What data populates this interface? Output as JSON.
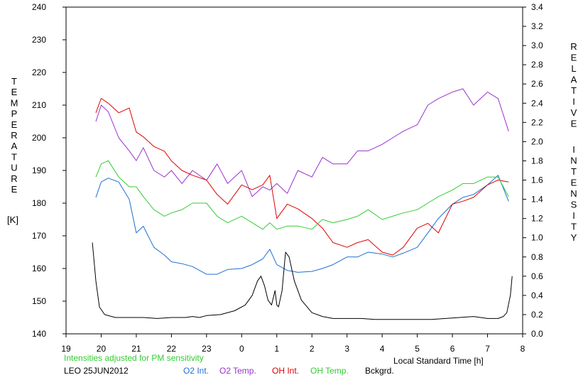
{
  "chart_data": {
    "type": "line",
    "left_axis": {
      "label_letters": [
        "T",
        "E",
        "M",
        "P",
        "E",
        "R",
        "A",
        "T",
        "U",
        "R",
        "E"
      ],
      "unit": "[K]",
      "ylim": [
        140,
        240
      ],
      "ticks": [
        "140",
        "150",
        "160",
        "170",
        "180",
        "190",
        "200",
        "210",
        "220",
        "230",
        "240"
      ]
    },
    "right_axis": {
      "label_word1": [
        "R",
        "E",
        "L",
        "A",
        "T",
        "I",
        "V",
        "E"
      ],
      "label_word2": [
        "I",
        "N",
        "T",
        "E",
        "N",
        "S",
        "I",
        "T",
        "Y"
      ],
      "ylim": [
        0,
        3.4
      ],
      "ticks": [
        "0.0",
        "0.2",
        "0.4",
        "0.6",
        "0.8",
        "1.0",
        "1.2",
        "1.4",
        "1.6",
        "1.8",
        "2.0",
        "2.2",
        "2.4",
        "2.6",
        "2.8",
        "3.0",
        "3.2",
        "3.4"
      ]
    },
    "x_axis": {
      "label": "Local Standard Time [h]",
      "xlim": [
        19,
        32
      ],
      "tick_labels": [
        "19",
        "20",
        "21",
        "22",
        "23",
        "0",
        "1",
        "2",
        "3",
        "4",
        "5",
        "6",
        "7",
        "8"
      ]
    },
    "note": "Intensities adjusted for PM sensitivity",
    "station": "LEO 25JUN2012",
    "series": [
      {
        "name": "O2 Int.",
        "axis": "right",
        "color": "#1e6fd6",
        "x": [
          19.85,
          20.0,
          20.2,
          20.5,
          20.8,
          21.0,
          21.2,
          21.5,
          21.8,
          22.0,
          22.3,
          22.6,
          23.0,
          23.3,
          23.6,
          24.0,
          24.3,
          24.6,
          24.8,
          25.0,
          25.3,
          25.6,
          26.0,
          26.3,
          26.6,
          27.0,
          27.3,
          27.6,
          28.0,
          28.3,
          28.6,
          29.0,
          29.3,
          29.6,
          30.0,
          30.3,
          30.6,
          31.0,
          31.3,
          31.6
        ],
        "values": [
          1.42,
          1.58,
          1.62,
          1.58,
          1.4,
          1.05,
          1.12,
          0.9,
          0.82,
          0.75,
          0.73,
          0.7,
          0.62,
          0.62,
          0.67,
          0.68,
          0.72,
          0.78,
          0.88,
          0.72,
          0.66,
          0.64,
          0.65,
          0.68,
          0.72,
          0.8,
          0.8,
          0.85,
          0.83,
          0.8,
          0.84,
          0.9,
          1.05,
          1.2,
          1.35,
          1.42,
          1.45,
          1.55,
          1.65,
          1.38
        ]
      },
      {
        "name": "O2 Temp.",
        "axis": "left",
        "color": "#9933cc",
        "x": [
          19.85,
          20.0,
          20.2,
          20.5,
          20.8,
          21.0,
          21.2,
          21.5,
          21.8,
          22.0,
          22.3,
          22.6,
          23.0,
          23.3,
          23.6,
          24.0,
          24.3,
          24.6,
          24.8,
          25.0,
          25.3,
          25.6,
          26.0,
          26.3,
          26.6,
          27.0,
          27.3,
          27.6,
          28.0,
          28.3,
          28.6,
          29.0,
          29.3,
          29.6,
          30.0,
          30.3,
          30.6,
          31.0,
          31.3,
          31.6
        ],
        "values": [
          205,
          210,
          208,
          200,
          196,
          193,
          197,
          190,
          188,
          190,
          186,
          190,
          187,
          192,
          186,
          190,
          182,
          185,
          184,
          186,
          183,
          190,
          188,
          194,
          192,
          192,
          196,
          196,
          198,
          200,
          202,
          204,
          210,
          212,
          214,
          215,
          210,
          214,
          212,
          202
        ]
      },
      {
        "name": "OH Int.",
        "axis": "right",
        "color": "#e00000",
        "x": [
          19.85,
          20.0,
          20.2,
          20.5,
          20.8,
          21.0,
          21.2,
          21.5,
          21.8,
          22.0,
          22.3,
          22.6,
          23.0,
          23.3,
          23.6,
          24.0,
          24.3,
          24.6,
          24.8,
          25.0,
          25.3,
          25.6,
          26.0,
          26.3,
          26.6,
          27.0,
          27.3,
          27.6,
          28.0,
          28.3,
          28.6,
          29.0,
          29.3,
          29.6,
          30.0,
          30.3,
          30.6,
          31.0,
          31.3,
          31.6
        ],
        "values": [
          2.3,
          2.45,
          2.4,
          2.3,
          2.35,
          2.1,
          2.05,
          1.95,
          1.9,
          1.8,
          1.7,
          1.65,
          1.6,
          1.45,
          1.35,
          1.55,
          1.5,
          1.55,
          1.65,
          1.2,
          1.35,
          1.3,
          1.2,
          1.1,
          0.95,
          0.9,
          0.95,
          0.98,
          0.85,
          0.82,
          0.9,
          1.1,
          1.15,
          1.05,
          1.35,
          1.38,
          1.42,
          1.55,
          1.6,
          1.58
        ]
      },
      {
        "name": "OH Temp.",
        "axis": "left",
        "color": "#33cc33",
        "x": [
          19.85,
          20.0,
          20.2,
          20.5,
          20.8,
          21.0,
          21.2,
          21.5,
          21.8,
          22.0,
          22.3,
          22.6,
          23.0,
          23.3,
          23.6,
          24.0,
          24.3,
          24.6,
          24.8,
          25.0,
          25.3,
          25.6,
          26.0,
          26.3,
          26.6,
          27.0,
          27.3,
          27.6,
          28.0,
          28.3,
          28.6,
          29.0,
          29.3,
          29.6,
          30.0,
          30.3,
          30.6,
          31.0,
          31.3,
          31.6
        ],
        "values": [
          188,
          192,
          193,
          188,
          185,
          185,
          182,
          178,
          176,
          177,
          178,
          180,
          180,
          176,
          174,
          176,
          174,
          172,
          174,
          172,
          173,
          173,
          172,
          175,
          174,
          175,
          176,
          178,
          175,
          176,
          177,
          178,
          180,
          182,
          184,
          186,
          186,
          188,
          188,
          182
        ]
      },
      {
        "name": "Bckgrd.",
        "axis": "right",
        "color": "#000000",
        "x": [
          19.75,
          19.85,
          19.95,
          20.1,
          20.4,
          20.8,
          21.2,
          21.6,
          22.0,
          22.4,
          22.6,
          22.8,
          23.0,
          23.4,
          23.8,
          24.1,
          24.3,
          24.45,
          24.55,
          24.65,
          24.75,
          24.85,
          24.95,
          25.0,
          25.05,
          25.15,
          25.25,
          25.35,
          25.5,
          25.7,
          26.0,
          26.3,
          26.6,
          27.0,
          27.4,
          27.8,
          28.2,
          28.6,
          29.0,
          29.4,
          29.8,
          30.2,
          30.6,
          31.0,
          31.3,
          31.45,
          31.55,
          31.65,
          31.7
        ],
        "values": [
          0.95,
          0.55,
          0.28,
          0.2,
          0.17,
          0.17,
          0.17,
          0.16,
          0.17,
          0.17,
          0.18,
          0.17,
          0.19,
          0.2,
          0.24,
          0.3,
          0.4,
          0.55,
          0.6,
          0.5,
          0.35,
          0.3,
          0.45,
          0.3,
          0.28,
          0.45,
          0.85,
          0.8,
          0.55,
          0.35,
          0.22,
          0.18,
          0.16,
          0.16,
          0.16,
          0.15,
          0.15,
          0.15,
          0.15,
          0.15,
          0.16,
          0.17,
          0.18,
          0.16,
          0.16,
          0.18,
          0.22,
          0.4,
          0.6
        ]
      }
    ]
  }
}
